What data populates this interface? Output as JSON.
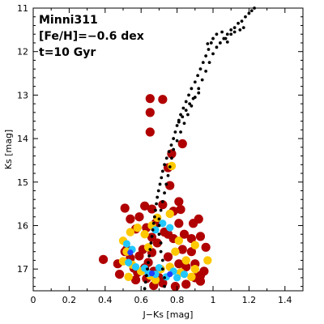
{
  "chart_data": {
    "type": "scatter",
    "title": "",
    "annotations": [
      "Minni311",
      "[Fe/H]=−0.6 dex",
      "t=10 Gyr"
    ],
    "xlabel": "J−Ks [mag]",
    "ylabel": "Ks [mag]",
    "xlim": [
      0,
      1.5
    ],
    "ylim": [
      17.5,
      11
    ],
    "y_inverted": true,
    "grid": false,
    "x_ticks": [
      "0",
      "0.2",
      "0.4",
      "0.6",
      "0.8",
      "1",
      "1.2",
      "1.4"
    ],
    "y_ticks": [
      "11",
      "12",
      "13",
      "14",
      "15",
      "16",
      "17"
    ],
    "colors": {
      "sparse": "#b00000",
      "medium": "#ffc800",
      "high": "#22c8ff",
      "peak": "#2040ff",
      "isochrone": "#000000"
    },
    "series": [
      {
        "density": "sparse",
        "points": [
          [
            0.65,
            13.08
          ],
          [
            0.72,
            13.1
          ],
          [
            0.65,
            13.4
          ],
          [
            0.65,
            13.85
          ],
          [
            0.77,
            14.35
          ],
          [
            0.83,
            14.12
          ],
          [
            0.75,
            14.67
          ],
          [
            0.76,
            15.08
          ],
          [
            0.72,
            15.52
          ],
          [
            0.51,
            15.6
          ],
          [
            0.62,
            15.55
          ],
          [
            0.59,
            15.8
          ],
          [
            0.54,
            15.85
          ],
          [
            0.66,
            15.62
          ],
          [
            0.68,
            15.95
          ],
          [
            0.78,
            15.67
          ],
          [
            0.82,
            15.63
          ],
          [
            0.81,
            15.95
          ],
          [
            0.89,
            15.95
          ],
          [
            0.92,
            15.85
          ],
          [
            0.57,
            16.08
          ],
          [
            0.63,
            16.05
          ],
          [
            0.66,
            16.27
          ],
          [
            0.73,
            16.15
          ],
          [
            0.75,
            16.2
          ],
          [
            0.69,
            16.4
          ],
          [
            0.84,
            16.2
          ],
          [
            0.88,
            16.3
          ],
          [
            0.93,
            16.25
          ],
          [
            0.78,
            16.3
          ],
          [
            0.52,
            16.55
          ],
          [
            0.61,
            16.55
          ],
          [
            0.83,
            16.55
          ],
          [
            0.88,
            16.6
          ],
          [
            0.96,
            16.5
          ],
          [
            0.47,
            16.88
          ],
          [
            0.51,
            16.6
          ],
          [
            0.75,
            16.72
          ],
          [
            0.56,
            16.98
          ],
          [
            0.59,
            16.7
          ],
          [
            0.64,
            16.85
          ],
          [
            0.81,
            16.88
          ],
          [
            0.85,
            16.95
          ],
          [
            0.9,
            16.88
          ],
          [
            0.39,
            16.78
          ],
          [
            0.54,
            16.75
          ],
          [
            0.62,
            16.97
          ],
          [
            0.67,
            17.05
          ],
          [
            0.93,
            17.15
          ],
          [
            0.95,
            17.05
          ],
          [
            0.48,
            17.12
          ],
          [
            0.57,
            17.25
          ],
          [
            0.63,
            17.22
          ],
          [
            0.7,
            17.2
          ],
          [
            0.9,
            17.2
          ],
          [
            0.67,
            17.38
          ],
          [
            0.72,
            17.32
          ],
          [
            0.85,
            17.35
          ],
          [
            0.79,
            17.4
          ],
          [
            0.81,
            15.45
          ],
          [
            0.93,
            17.28
          ],
          [
            0.58,
            17.08
          ],
          [
            0.66,
            16.62
          ]
        ]
      },
      {
        "density": "medium",
        "points": [
          [
            0.54,
            16.15
          ],
          [
            0.58,
            16.05
          ],
          [
            0.66,
            16.0
          ],
          [
            0.69,
            15.82
          ],
          [
            0.5,
            16.35
          ],
          [
            0.52,
            16.6
          ],
          [
            0.5,
            16.82
          ],
          [
            0.55,
            16.9
          ],
          [
            0.6,
            17.05
          ],
          [
            0.65,
            17.15
          ],
          [
            0.71,
            17.0
          ],
          [
            0.76,
            16.95
          ],
          [
            0.82,
            17.08
          ],
          [
            0.88,
            17.18
          ],
          [
            0.85,
            16.8
          ],
          [
            0.9,
            17.0
          ],
          [
            0.97,
            16.8
          ],
          [
            0.81,
            16.35
          ],
          [
            0.76,
            15.73
          ],
          [
            0.68,
            17.25
          ],
          [
            0.9,
            16.45
          ],
          [
            0.53,
            17.18
          ],
          [
            0.77,
            14.63
          ],
          [
            0.62,
            16.2
          ],
          [
            0.64,
            16.5
          ],
          [
            0.79,
            16.6
          ]
        ]
      },
      {
        "density": "high",
        "points": [
          [
            0.52,
            16.42
          ],
          [
            0.55,
            16.55
          ],
          [
            0.53,
            16.85
          ],
          [
            0.57,
            16.95
          ],
          [
            0.62,
            16.98
          ],
          [
            0.64,
            17.1
          ],
          [
            0.68,
            17.12
          ],
          [
            0.74,
            17.18
          ],
          [
            0.78,
            17.05
          ],
          [
            0.8,
            17.2
          ],
          [
            0.84,
            17.12
          ],
          [
            0.7,
            16.97
          ],
          [
            0.72,
            15.95
          ],
          [
            0.68,
            16.1
          ],
          [
            0.76,
            16.05
          ]
        ]
      },
      {
        "density": "peak",
        "points": [
          [
            0.54,
            16.62
          ],
          [
            0.66,
            17.1
          ],
          [
            0.76,
            17.12
          ]
        ]
      }
    ],
    "isochrone": [
      [
        0.62,
        17.45
      ],
      [
        0.625,
        17.3
      ],
      [
        0.63,
        17.15
      ],
      [
        0.635,
        17.0
      ],
      [
        0.64,
        16.85
      ],
      [
        0.645,
        16.7
      ],
      [
        0.65,
        16.55
      ],
      [
        0.655,
        16.4
      ],
      [
        0.66,
        16.25
      ],
      [
        0.665,
        16.1
      ],
      [
        0.67,
        15.95
      ],
      [
        0.675,
        15.8
      ],
      [
        0.68,
        15.65
      ],
      [
        0.685,
        15.5
      ],
      [
        0.69,
        15.35
      ],
      [
        0.697,
        15.2
      ],
      [
        0.705,
        15.05
      ],
      [
        0.713,
        14.9
      ],
      [
        0.72,
        14.75
      ],
      [
        0.73,
        14.6
      ],
      [
        0.742,
        14.45
      ],
      [
        0.755,
        14.3
      ],
      [
        0.768,
        14.15
      ],
      [
        0.78,
        14.0
      ],
      [
        0.79,
        13.85
      ],
      [
        0.8,
        13.7
      ],
      [
        0.81,
        13.58
      ],
      [
        0.82,
        13.45
      ],
      [
        0.835,
        13.3
      ],
      [
        0.85,
        13.15
      ],
      [
        0.865,
        13.0
      ],
      [
        0.88,
        12.85
      ],
      [
        0.9,
        12.7
      ],
      [
        0.915,
        12.55
      ],
      [
        0.93,
        12.4
      ],
      [
        0.945,
        12.25
      ],
      [
        0.96,
        12.1
      ],
      [
        0.975,
        11.95
      ],
      [
        0.99,
        11.8
      ],
      [
        1.0,
        11.7
      ],
      [
        1.02,
        11.6
      ],
      [
        1.05,
        11.55
      ],
      [
        1.07,
        11.7
      ],
      [
        1.08,
        11.6
      ],
      [
        1.1,
        11.5
      ],
      [
        1.12,
        11.45
      ],
      [
        1.14,
        11.35
      ],
      [
        1.16,
        11.3
      ],
      [
        1.18,
        11.2
      ],
      [
        1.2,
        11.12
      ],
      [
        1.215,
        11.06
      ],
      [
        1.23,
        11.0
      ],
      [
        0.73,
        17.4
      ],
      [
        0.73,
        17.2
      ],
      [
        0.72,
        17.0
      ],
      [
        0.72,
        16.8
      ],
      [
        0.71,
        16.6
      ],
      [
        0.71,
        16.4
      ],
      [
        0.7,
        16.2
      ],
      [
        0.7,
        16.0
      ],
      [
        0.7,
        15.85
      ],
      [
        0.71,
        15.65
      ],
      [
        0.72,
        15.45
      ],
      [
        0.73,
        15.25
      ],
      [
        0.74,
        15.05
      ],
      [
        0.75,
        14.85
      ],
      [
        0.76,
        14.65
      ],
      [
        0.77,
        14.45
      ],
      [
        0.78,
        14.25
      ],
      [
        0.8,
        14.05
      ],
      [
        0.82,
        13.85
      ],
      [
        0.84,
        13.65
      ],
      [
        0.86,
        13.45
      ],
      [
        0.88,
        13.25
      ],
      [
        0.9,
        13.05
      ],
      [
        0.92,
        12.85
      ],
      [
        0.94,
        12.65
      ],
      [
        0.96,
        12.45
      ],
      [
        0.98,
        12.25
      ],
      [
        1.0,
        12.05
      ],
      [
        1.02,
        11.9
      ],
      [
        1.04,
        11.8
      ],
      [
        1.06,
        11.7
      ],
      [
        1.08,
        11.78
      ],
      [
        1.1,
        11.6
      ],
      [
        1.12,
        11.55
      ],
      [
        1.15,
        11.5
      ],
      [
        1.17,
        11.45
      ],
      [
        0.81,
        13.62
      ],
      [
        0.83,
        13.5
      ],
      [
        0.85,
        13.35
      ],
      [
        0.87,
        13.2
      ],
      [
        0.89,
        13.08
      ],
      [
        0.92,
        12.95
      ],
      [
        0.97,
        11.82
      ]
    ]
  }
}
